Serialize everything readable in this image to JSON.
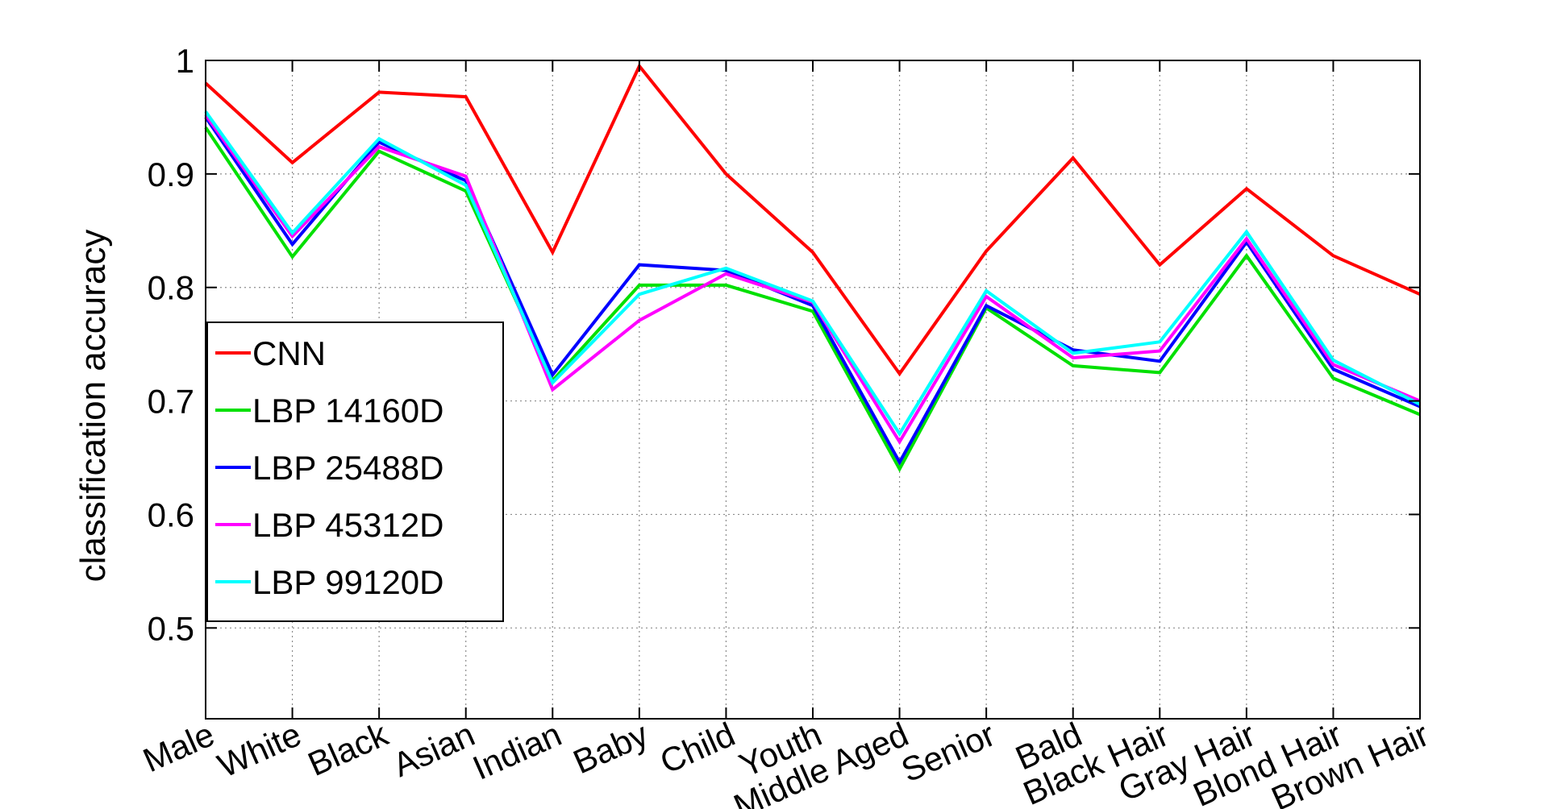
{
  "chart_data": {
    "type": "line",
    "title": "",
    "xlabel": "",
    "ylabel": "classification accuracy",
    "categories": [
      "Male",
      "White",
      "Black",
      "Asian",
      "Indian",
      "Baby",
      "Child",
      "Youth",
      "Middle Aged",
      "Senior",
      "Bald",
      "Black Hair",
      "Gray Hair",
      "Blond Hair",
      "Brown Hair"
    ],
    "ylim": [
      0.42,
      1.0
    ],
    "yticks": [
      0.5,
      0.6,
      0.7,
      0.8,
      0.9,
      1
    ],
    "ytick_labels": [
      "0.5",
      "0.6",
      "0.7",
      "0.8",
      "0.9",
      "1"
    ],
    "grid": true,
    "legend_position": "left",
    "series": [
      {
        "name": "CNN",
        "color": "#ff0000",
        "values": [
          0.98,
          0.91,
          0.972,
          0.968,
          0.831,
          0.995,
          0.9,
          0.831,
          0.724,
          0.832,
          0.914,
          0.82,
          0.887,
          0.828,
          0.794
        ]
      },
      {
        "name": "LBP 14160D",
        "color": "#00e000",
        "values": [
          0.941,
          0.827,
          0.92,
          0.885,
          0.718,
          0.802,
          0.802,
          0.779,
          0.64,
          0.782,
          0.731,
          0.725,
          0.828,
          0.72,
          0.688
        ]
      },
      {
        "name": "LBP 25488D",
        "color": "#0000ff",
        "values": [
          0.95,
          0.838,
          0.928,
          0.894,
          0.723,
          0.82,
          0.815,
          0.784,
          0.646,
          0.784,
          0.745,
          0.735,
          0.84,
          0.728,
          0.695
        ]
      },
      {
        "name": "LBP 45312D",
        "color": "#ff00ff",
        "values": [
          0.952,
          0.845,
          0.924,
          0.898,
          0.71,
          0.771,
          0.812,
          0.787,
          0.664,
          0.792,
          0.738,
          0.744,
          0.843,
          0.732,
          0.7
        ]
      },
      {
        "name": "LBP 99120D",
        "color": "#00ffff",
        "values": [
          0.955,
          0.848,
          0.931,
          0.89,
          0.716,
          0.794,
          0.817,
          0.788,
          0.671,
          0.797,
          0.742,
          0.752,
          0.849,
          0.736,
          0.697
        ]
      }
    ]
  }
}
